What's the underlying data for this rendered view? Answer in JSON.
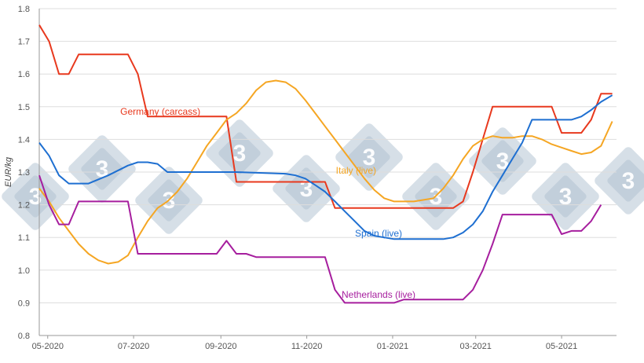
{
  "chart_data": {
    "type": "line",
    "title": "",
    "xlabel": "",
    "ylabel": "EUR/kg",
    "ylim": [
      0.8,
      1.8
    ],
    "yticks": [
      "0.8",
      "0.9",
      "1.0",
      "1.1",
      "1.2",
      "1.3",
      "1.4",
      "1.5",
      "1.6",
      "1.7",
      "1.8"
    ],
    "xticks": [
      "05-2020",
      "07-2020",
      "09-2020",
      "11-2020",
      "01-2021",
      "03-2021",
      "05-2021"
    ],
    "x_range": [
      "2020-04-25",
      "2021-06-09"
    ],
    "grid": "horizontal",
    "series": [
      {
        "name": "Germany (carcass)",
        "color": "#e8391e",
        "label": "Germany (carcass)",
        "points": [
          [
            "2020-04-25",
            1.75
          ],
          [
            "2020-05-02",
            1.7
          ],
          [
            "2020-05-09",
            1.6
          ],
          [
            "2020-05-16",
            1.6
          ],
          [
            "2020-05-23",
            1.66
          ],
          [
            "2020-06-27",
            1.66
          ],
          [
            "2020-07-04",
            1.6
          ],
          [
            "2020-07-11",
            1.47
          ],
          [
            "2020-08-29",
            1.47
          ],
          [
            "2020-09-05",
            1.47
          ],
          [
            "2020-09-12",
            1.27
          ],
          [
            "2020-11-14",
            1.27
          ],
          [
            "2020-11-21",
            1.19
          ],
          [
            "2021-02-13",
            1.19
          ],
          [
            "2021-02-20",
            1.21
          ],
          [
            "2021-02-27",
            1.3
          ],
          [
            "2021-03-13",
            1.5
          ],
          [
            "2021-04-24",
            1.5
          ],
          [
            "2021-05-01",
            1.42
          ],
          [
            "2021-05-15",
            1.42
          ],
          [
            "2021-05-22",
            1.46
          ],
          [
            "2021-05-29",
            1.54
          ],
          [
            "2021-06-06",
            1.54
          ]
        ]
      },
      {
        "name": "Italy (live)",
        "color": "#f5a623",
        "label": "Italy (live)",
        "points": [
          [
            "2020-04-25",
            1.25
          ],
          [
            "2020-05-02",
            1.21
          ],
          [
            "2020-05-09",
            1.16
          ],
          [
            "2020-05-16",
            1.12
          ],
          [
            "2020-05-23",
            1.08
          ],
          [
            "2020-05-30",
            1.05
          ],
          [
            "2020-06-06",
            1.03
          ],
          [
            "2020-06-13",
            1.02
          ],
          [
            "2020-06-20",
            1.025
          ],
          [
            "2020-06-27",
            1.045
          ],
          [
            "2020-07-04",
            1.1
          ],
          [
            "2020-07-11",
            1.15
          ],
          [
            "2020-07-18",
            1.19
          ],
          [
            "2020-07-25",
            1.21
          ],
          [
            "2020-08-01",
            1.24
          ],
          [
            "2020-08-08",
            1.28
          ],
          [
            "2020-08-15",
            1.33
          ],
          [
            "2020-08-22",
            1.38
          ],
          [
            "2020-08-29",
            1.42
          ],
          [
            "2020-09-05",
            1.46
          ],
          [
            "2020-09-12",
            1.48
          ],
          [
            "2020-09-19",
            1.51
          ],
          [
            "2020-09-26",
            1.55
          ],
          [
            "2020-10-03",
            1.575
          ],
          [
            "2020-10-10",
            1.58
          ],
          [
            "2020-10-17",
            1.575
          ],
          [
            "2020-10-24",
            1.555
          ],
          [
            "2020-10-31",
            1.52
          ],
          [
            "2020-11-07",
            1.48
          ],
          [
            "2020-11-14",
            1.44
          ],
          [
            "2020-11-21",
            1.4
          ],
          [
            "2020-11-28",
            1.36
          ],
          [
            "2020-12-05",
            1.32
          ],
          [
            "2020-12-12",
            1.28
          ],
          [
            "2020-12-19",
            1.245
          ],
          [
            "2020-12-26",
            1.22
          ],
          [
            "2021-01-02",
            1.21
          ],
          [
            "2021-01-09",
            1.21
          ],
          [
            "2021-01-16",
            1.21
          ],
          [
            "2021-01-23",
            1.215
          ],
          [
            "2021-01-30",
            1.22
          ],
          [
            "2021-02-06",
            1.25
          ],
          [
            "2021-02-13",
            1.29
          ],
          [
            "2021-02-20",
            1.34
          ],
          [
            "2021-02-27",
            1.38
          ],
          [
            "2021-03-06",
            1.4
          ],
          [
            "2021-03-13",
            1.41
          ],
          [
            "2021-03-20",
            1.405
          ],
          [
            "2021-03-27",
            1.405
          ],
          [
            "2021-04-03",
            1.41
          ],
          [
            "2021-04-10",
            1.41
          ],
          [
            "2021-04-17",
            1.4
          ],
          [
            "2021-04-24",
            1.385
          ],
          [
            "2021-05-01",
            1.375
          ],
          [
            "2021-05-08",
            1.365
          ],
          [
            "2021-05-15",
            1.355
          ],
          [
            "2021-05-22",
            1.36
          ],
          [
            "2021-05-29",
            1.38
          ],
          [
            "2021-06-06",
            1.455
          ]
        ]
      },
      {
        "name": "Spain (live)",
        "color": "#1e6fd1",
        "label": "Spain (live)",
        "points": [
          [
            "2020-04-25",
            1.39
          ],
          [
            "2020-05-02",
            1.35
          ],
          [
            "2020-05-09",
            1.29
          ],
          [
            "2020-05-16",
            1.265
          ],
          [
            "2020-05-30",
            1.265
          ],
          [
            "2020-06-13",
            1.29
          ],
          [
            "2020-06-27",
            1.32
          ],
          [
            "2020-07-04",
            1.33
          ],
          [
            "2020-07-11",
            1.33
          ],
          [
            "2020-07-18",
            1.325
          ],
          [
            "2020-07-25",
            1.3
          ],
          [
            "2020-08-01",
            1.3
          ],
          [
            "2020-09-12",
            1.3
          ],
          [
            "2020-10-17",
            1.295
          ],
          [
            "2020-10-24",
            1.29
          ],
          [
            "2020-10-31",
            1.28
          ],
          [
            "2020-11-07",
            1.26
          ],
          [
            "2020-11-14",
            1.24
          ],
          [
            "2020-11-21",
            1.21
          ],
          [
            "2020-11-28",
            1.18
          ],
          [
            "2020-12-05",
            1.15
          ],
          [
            "2020-12-12",
            1.12
          ],
          [
            "2020-12-19",
            1.105
          ],
          [
            "2020-12-26",
            1.1
          ],
          [
            "2021-01-02",
            1.095
          ],
          [
            "2021-02-06",
            1.095
          ],
          [
            "2021-02-13",
            1.1
          ],
          [
            "2021-02-20",
            1.115
          ],
          [
            "2021-02-27",
            1.14
          ],
          [
            "2021-03-06",
            1.18
          ],
          [
            "2021-03-13",
            1.24
          ],
          [
            "2021-03-20",
            1.29
          ],
          [
            "2021-03-27",
            1.34
          ],
          [
            "2021-04-03",
            1.39
          ],
          [
            "2021-04-10",
            1.46
          ],
          [
            "2021-05-08",
            1.46
          ],
          [
            "2021-05-15",
            1.47
          ],
          [
            "2021-05-22",
            1.49
          ],
          [
            "2021-05-29",
            1.515
          ],
          [
            "2021-06-06",
            1.535
          ]
        ]
      },
      {
        "name": "Netherlands (live)",
        "color": "#a61e9e",
        "label": "Netherlands (live)",
        "points": [
          [
            "2020-04-25",
            1.29
          ],
          [
            "2020-05-02",
            1.2
          ],
          [
            "2020-05-09",
            1.14
          ],
          [
            "2020-05-16",
            1.14
          ],
          [
            "2020-05-23",
            1.21
          ],
          [
            "2020-06-27",
            1.21
          ],
          [
            "2020-07-04",
            1.05
          ],
          [
            "2020-08-29",
            1.05
          ],
          [
            "2020-09-05",
            1.09
          ],
          [
            "2020-09-12",
            1.05
          ],
          [
            "2020-09-19",
            1.05
          ],
          [
            "2020-09-26",
            1.04
          ],
          [
            "2020-11-07",
            1.04
          ],
          [
            "2020-11-14",
            1.04
          ],
          [
            "2020-11-21",
            0.94
          ],
          [
            "2020-11-28",
            0.9
          ],
          [
            "2021-01-02",
            0.9
          ],
          [
            "2021-01-09",
            0.91
          ],
          [
            "2021-02-13",
            0.91
          ],
          [
            "2021-02-20",
            0.91
          ],
          [
            "2021-02-27",
            0.94
          ],
          [
            "2021-03-06",
            1.0
          ],
          [
            "2021-03-13",
            1.08
          ],
          [
            "2021-03-20",
            1.17
          ],
          [
            "2021-04-24",
            1.17
          ],
          [
            "2021-05-01",
            1.11
          ],
          [
            "2021-05-08",
            1.12
          ],
          [
            "2021-05-15",
            1.12
          ],
          [
            "2021-05-22",
            1.15
          ],
          [
            "2021-05-29",
            1.2
          ]
        ]
      }
    ],
    "label_positions": {
      "Germany (carcass)": [
        "2020-07-20",
        1.485
      ],
      "Italy (live)": [
        "2020-12-06",
        1.305
      ],
      "Spain (live)": [
        "2020-12-22",
        1.113
      ],
      "Netherlands (live)": [
        "2020-12-22",
        0.925
      ]
    }
  },
  "watermark": {
    "text": "3",
    "color": "#aebfd0"
  }
}
